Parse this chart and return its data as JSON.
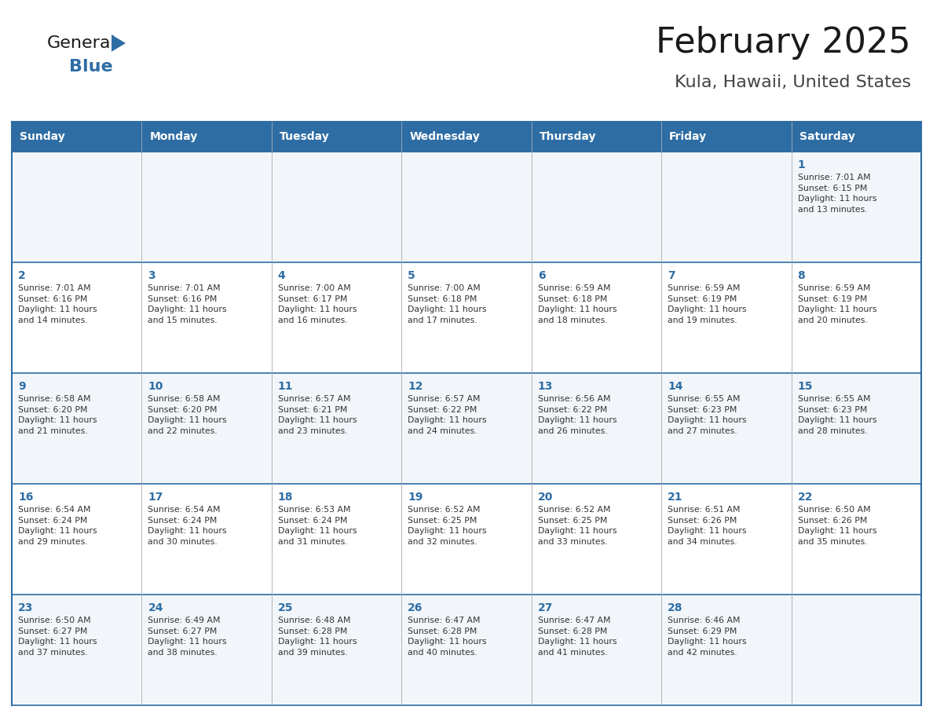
{
  "title": "February 2025",
  "subtitle": "Kula, Hawaii, United States",
  "header_bg": "#2E6DA4",
  "header_text_color": "#FFFFFF",
  "row_bg_light": "#F2F6FA",
  "row_bg_white": "#FFFFFF",
  "grid_color": "#2E6DA4",
  "grid_line_color": "#AAAAAA",
  "day_number_color": "#2E6DA4",
  "cell_text_color": "#333333",
  "title_color": "#1a1a1a",
  "subtitle_color": "#444444",
  "days_of_week": [
    "Sunday",
    "Monday",
    "Tuesday",
    "Wednesday",
    "Thursday",
    "Friday",
    "Saturday"
  ],
  "weeks": [
    [
      {
        "day": null,
        "info": null
      },
      {
        "day": null,
        "info": null
      },
      {
        "day": null,
        "info": null
      },
      {
        "day": null,
        "info": null
      },
      {
        "day": null,
        "info": null
      },
      {
        "day": null,
        "info": null
      },
      {
        "day": 1,
        "info": "Sunrise: 7:01 AM\nSunset: 6:15 PM\nDaylight: 11 hours\nand 13 minutes."
      }
    ],
    [
      {
        "day": 2,
        "info": "Sunrise: 7:01 AM\nSunset: 6:16 PM\nDaylight: 11 hours\nand 14 minutes."
      },
      {
        "day": 3,
        "info": "Sunrise: 7:01 AM\nSunset: 6:16 PM\nDaylight: 11 hours\nand 15 minutes."
      },
      {
        "day": 4,
        "info": "Sunrise: 7:00 AM\nSunset: 6:17 PM\nDaylight: 11 hours\nand 16 minutes."
      },
      {
        "day": 5,
        "info": "Sunrise: 7:00 AM\nSunset: 6:18 PM\nDaylight: 11 hours\nand 17 minutes."
      },
      {
        "day": 6,
        "info": "Sunrise: 6:59 AM\nSunset: 6:18 PM\nDaylight: 11 hours\nand 18 minutes."
      },
      {
        "day": 7,
        "info": "Sunrise: 6:59 AM\nSunset: 6:19 PM\nDaylight: 11 hours\nand 19 minutes."
      },
      {
        "day": 8,
        "info": "Sunrise: 6:59 AM\nSunset: 6:19 PM\nDaylight: 11 hours\nand 20 minutes."
      }
    ],
    [
      {
        "day": 9,
        "info": "Sunrise: 6:58 AM\nSunset: 6:20 PM\nDaylight: 11 hours\nand 21 minutes."
      },
      {
        "day": 10,
        "info": "Sunrise: 6:58 AM\nSunset: 6:20 PM\nDaylight: 11 hours\nand 22 minutes."
      },
      {
        "day": 11,
        "info": "Sunrise: 6:57 AM\nSunset: 6:21 PM\nDaylight: 11 hours\nand 23 minutes."
      },
      {
        "day": 12,
        "info": "Sunrise: 6:57 AM\nSunset: 6:22 PM\nDaylight: 11 hours\nand 24 minutes."
      },
      {
        "day": 13,
        "info": "Sunrise: 6:56 AM\nSunset: 6:22 PM\nDaylight: 11 hours\nand 26 minutes."
      },
      {
        "day": 14,
        "info": "Sunrise: 6:55 AM\nSunset: 6:23 PM\nDaylight: 11 hours\nand 27 minutes."
      },
      {
        "day": 15,
        "info": "Sunrise: 6:55 AM\nSunset: 6:23 PM\nDaylight: 11 hours\nand 28 minutes."
      }
    ],
    [
      {
        "day": 16,
        "info": "Sunrise: 6:54 AM\nSunset: 6:24 PM\nDaylight: 11 hours\nand 29 minutes."
      },
      {
        "day": 17,
        "info": "Sunrise: 6:54 AM\nSunset: 6:24 PM\nDaylight: 11 hours\nand 30 minutes."
      },
      {
        "day": 18,
        "info": "Sunrise: 6:53 AM\nSunset: 6:24 PM\nDaylight: 11 hours\nand 31 minutes."
      },
      {
        "day": 19,
        "info": "Sunrise: 6:52 AM\nSunset: 6:25 PM\nDaylight: 11 hours\nand 32 minutes."
      },
      {
        "day": 20,
        "info": "Sunrise: 6:52 AM\nSunset: 6:25 PM\nDaylight: 11 hours\nand 33 minutes."
      },
      {
        "day": 21,
        "info": "Sunrise: 6:51 AM\nSunset: 6:26 PM\nDaylight: 11 hours\nand 34 minutes."
      },
      {
        "day": 22,
        "info": "Sunrise: 6:50 AM\nSunset: 6:26 PM\nDaylight: 11 hours\nand 35 minutes."
      }
    ],
    [
      {
        "day": 23,
        "info": "Sunrise: 6:50 AM\nSunset: 6:27 PM\nDaylight: 11 hours\nand 37 minutes."
      },
      {
        "day": 24,
        "info": "Sunrise: 6:49 AM\nSunset: 6:27 PM\nDaylight: 11 hours\nand 38 minutes."
      },
      {
        "day": 25,
        "info": "Sunrise: 6:48 AM\nSunset: 6:28 PM\nDaylight: 11 hours\nand 39 minutes."
      },
      {
        "day": 26,
        "info": "Sunrise: 6:47 AM\nSunset: 6:28 PM\nDaylight: 11 hours\nand 40 minutes."
      },
      {
        "day": 27,
        "info": "Sunrise: 6:47 AM\nSunset: 6:28 PM\nDaylight: 11 hours\nand 41 minutes."
      },
      {
        "day": 28,
        "info": "Sunrise: 6:46 AM\nSunset: 6:29 PM\nDaylight: 11 hours\nand 42 minutes."
      },
      {
        "day": null,
        "info": null
      }
    ]
  ],
  "logo_general_color": "#1a1a1a",
  "logo_blue_color": "#2E6DA4",
  "logo_triangle_color": "#2E6DA4",
  "fig_width": 11.88,
  "fig_height": 9.18,
  "dpi": 100
}
